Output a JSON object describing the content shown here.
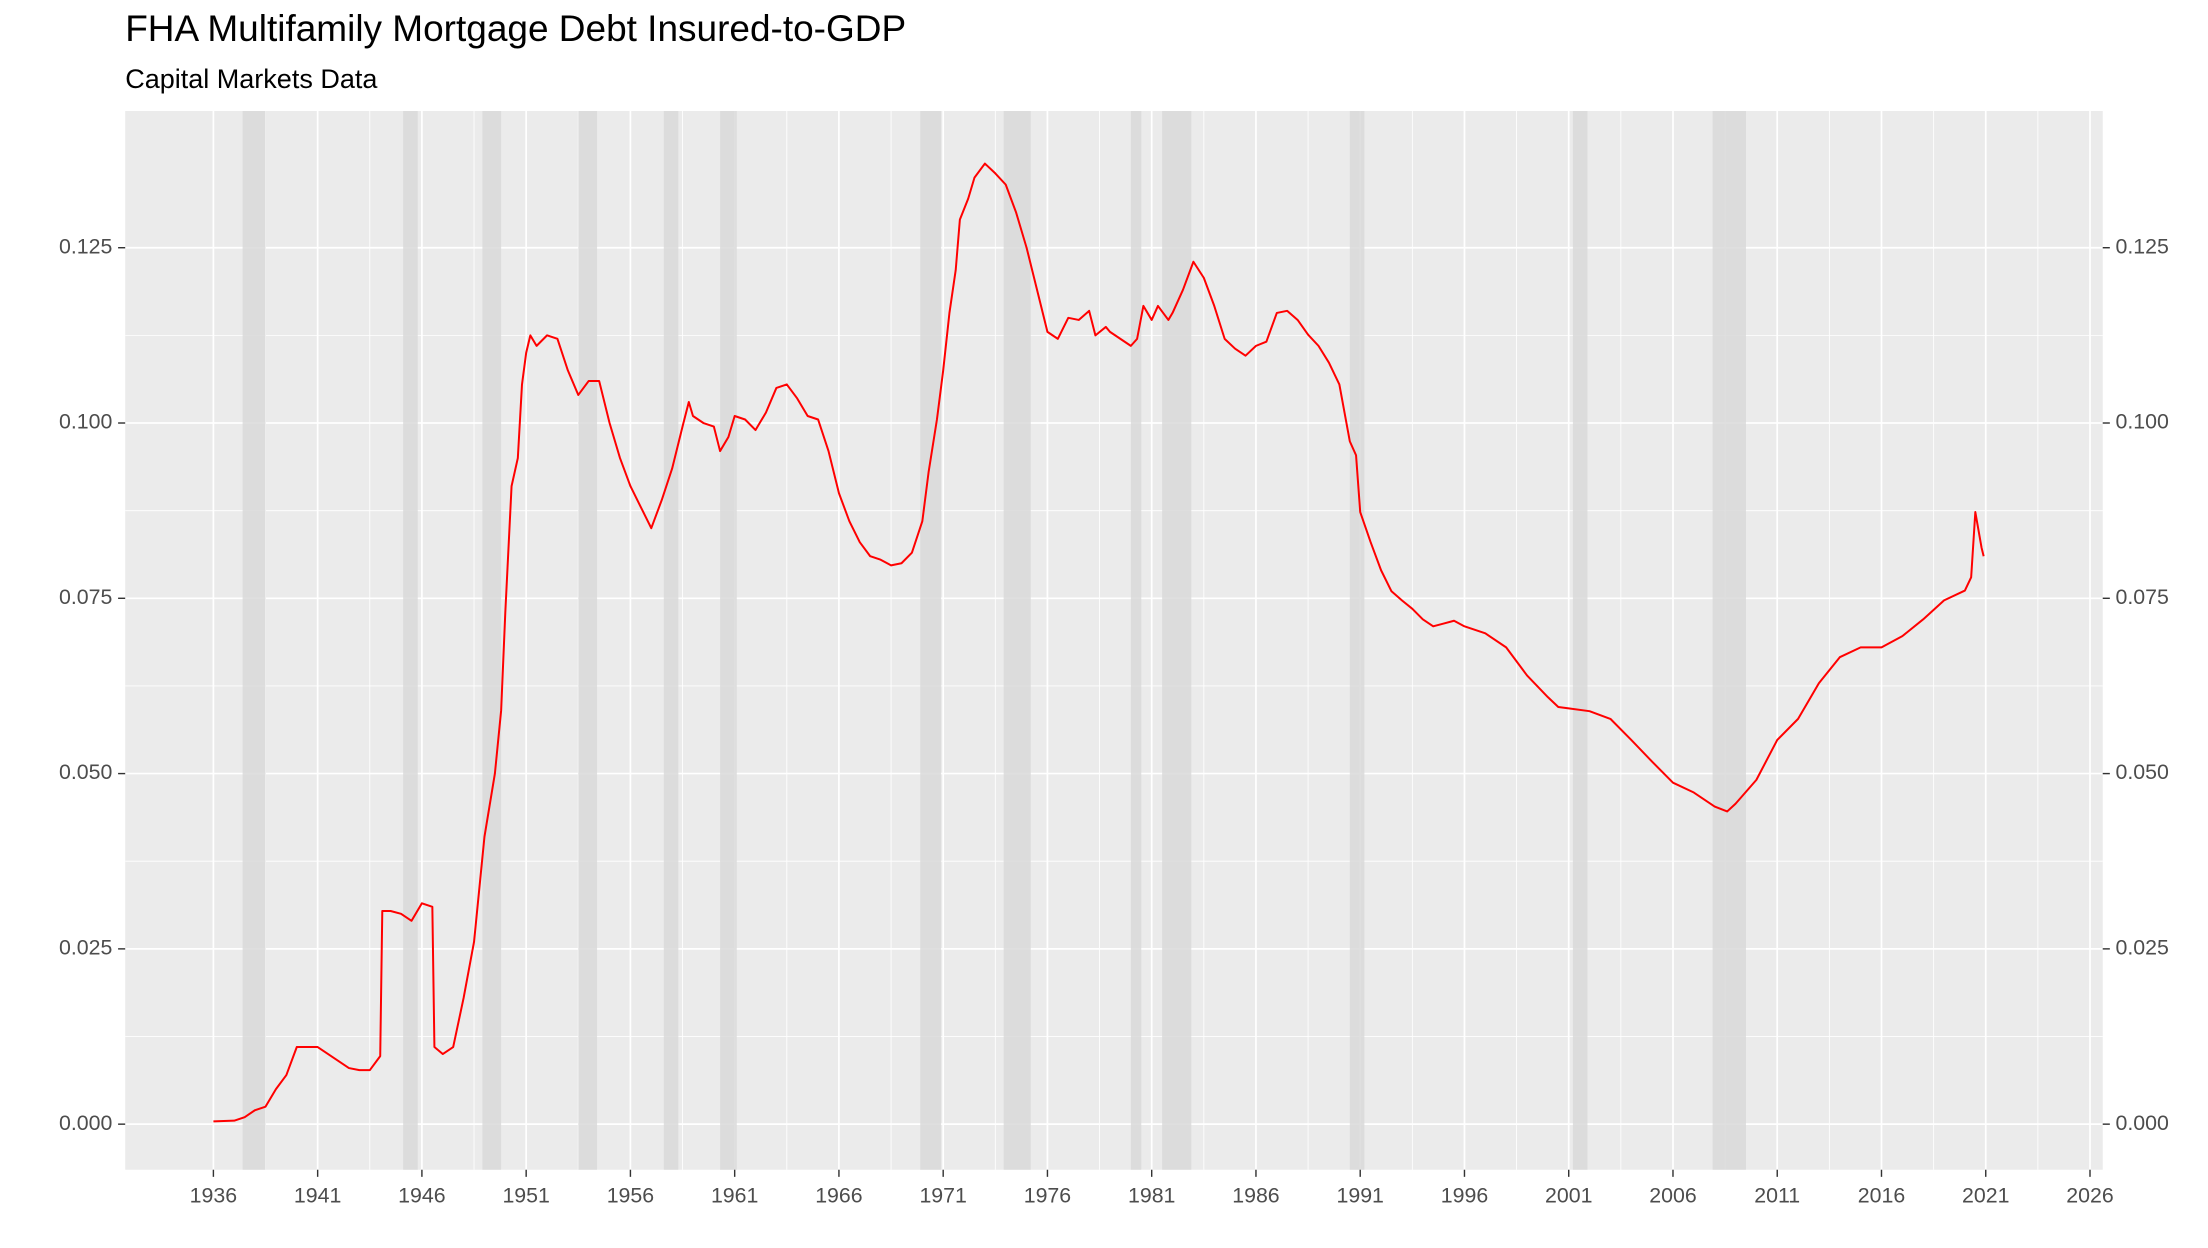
{
  "chart_data": {
    "type": "line",
    "title": "FHA Multifamily Mortgage Debt Insured-to-GDP",
    "subtitle": "Capital Markets Data",
    "color": "#ff0000",
    "recession_color": "#d9d9d9",
    "grid": true,
    "xlim": [
      1931.77,
      2026.61
    ],
    "ylim": [
      -0.0065,
      0.1445
    ],
    "xticks": [
      1936,
      1941,
      1946,
      1951,
      1956,
      1961,
      1966,
      1971,
      1976,
      1981,
      1986,
      1991,
      1996,
      2001,
      2006,
      2011,
      2016,
      2021,
      2026
    ],
    "yticks": [
      {
        "value": 0,
        "label": "0.000"
      },
      0.025,
      {
        "value": 0.05,
        "label": "0.050"
      },
      0.075,
      {
        "value": 0.1,
        "label": "0.100"
      },
      0.125
    ],
    "recessions": [
      [
        1937.4,
        1938.5
      ],
      [
        1945.1,
        1945.8
      ],
      [
        1948.9,
        1949.8
      ],
      [
        1953.5,
        1954.4
      ],
      [
        1957.6,
        1958.3
      ],
      [
        1960.3,
        1961.1
      ],
      [
        1969.9,
        1970.9
      ],
      [
        1973.9,
        1975.2
      ],
      [
        1980.0,
        1980.5
      ],
      [
        1981.5,
        1982.9
      ],
      [
        1990.5,
        1991.2
      ],
      [
        2001.2,
        2001.9
      ],
      [
        2007.9,
        2009.5
      ]
    ],
    "x": [
      1936.0,
      1937.0,
      1937.5,
      1938.0,
      1938.5,
      1939.0,
      1939.5,
      1940.0,
      1940.5,
      1941.0,
      1941.5,
      1942.0,
      1942.5,
      1943.0,
      1943.5,
      1944.0,
      1944.1,
      1944.5,
      1945.0,
      1945.5,
      1946.0,
      1946.5,
      1946.6,
      1947.0,
      1947.5,
      1948.0,
      1948.5,
      1949.0,
      1949.5,
      1949.8,
      1950.0,
      1950.3,
      1950.6,
      1950.8,
      1951.0,
      1951.2,
      1951.5,
      1952.0,
      1952.5,
      1953.0,
      1953.5,
      1954.0,
      1954.5,
      1955.0,
      1955.5,
      1956.0,
      1956.5,
      1957.0,
      1957.5,
      1958.0,
      1958.5,
      1958.8,
      1959.0,
      1959.5,
      1960.0,
      1960.3,
      1960.7,
      1961.0,
      1961.5,
      1962.0,
      1962.5,
      1963.0,
      1963.5,
      1964.0,
      1964.5,
      1965.0,
      1965.5,
      1966.0,
      1966.5,
      1967.0,
      1967.5,
      1968.0,
      1968.5,
      1969.0,
      1969.5,
      1970.0,
      1970.3,
      1970.7,
      1971.0,
      1971.3,
      1971.6,
      1971.8,
      1972.2,
      1972.5,
      1973.0,
      1973.5,
      1974.0,
      1974.5,
      1975.0,
      1975.5,
      1976.0,
      1976.5,
      1977.0,
      1977.5,
      1978.0,
      1978.3,
      1978.8,
      1979.0,
      1979.5,
      1980.0,
      1980.3,
      1980.6,
      1981.0,
      1981.3,
      1981.8,
      1982.0,
      1982.5,
      1983.0,
      1983.5,
      1984.0,
      1984.5,
      1985.0,
      1985.5,
      1986.0,
      1986.5,
      1987.0,
      1987.5,
      1988.0,
      1988.5,
      1989.0,
      1989.5,
      1990.0,
      1990.5,
      1990.8,
      1991.0,
      1991.5,
      1992.0,
      1992.5,
      1993.0,
      1993.5,
      1994.0,
      1994.5,
      1995.0,
      1995.5,
      1996.0,
      1997.0,
      1998.0,
      1999.0,
      2000.0,
      2000.5,
      2001.0,
      2002.0,
      2003.0,
      2004.0,
      2005.0,
      2006.0,
      2007.0,
      2008.0,
      2008.6,
      2009.0,
      2010.0,
      2011.0,
      2012.0,
      2013.0,
      2014.0,
      2015.0,
      2016.0,
      2017.0,
      2018.0,
      2019.0,
      2020.0,
      2020.3,
      2020.5,
      2020.8,
      2020.9
    ],
    "values": [
      0.0004,
      0.0005,
      0.001,
      0.002,
      0.0025,
      0.005,
      0.007,
      0.011,
      0.011,
      0.011,
      0.01,
      0.009,
      0.008,
      0.0077,
      0.0077,
      0.0097,
      0.0304,
      0.0304,
      0.03,
      0.029,
      0.0315,
      0.031,
      0.011,
      0.01,
      0.011,
      0.018,
      0.026,
      0.041,
      0.05,
      0.059,
      0.073,
      0.091,
      0.095,
      0.1055,
      0.11,
      0.1125,
      0.111,
      0.1125,
      0.112,
      0.1075,
      0.104,
      0.106,
      0.106,
      0.1,
      0.095,
      0.091,
      0.088,
      0.085,
      0.089,
      0.0935,
      0.0995,
      0.103,
      0.101,
      0.1,
      0.0995,
      0.096,
      0.098,
      0.101,
      0.1005,
      0.099,
      0.1015,
      0.105,
      0.1055,
      0.1035,
      0.101,
      0.1005,
      0.096,
      0.09,
      0.086,
      0.083,
      0.081,
      0.0805,
      0.0797,
      0.08,
      0.0815,
      0.086,
      0.093,
      0.1005,
      0.1075,
      0.1157,
      0.1218,
      0.129,
      0.132,
      0.135,
      0.137,
      0.1356,
      0.134,
      0.13,
      0.125,
      0.119,
      0.113,
      0.112,
      0.115,
      0.1147,
      0.116,
      0.1125,
      0.1137,
      0.113,
      0.112,
      0.111,
      0.112,
      0.1167,
      0.1147,
      0.1167,
      0.1147,
      0.1157,
      0.119,
      0.123,
      0.1207,
      0.1167,
      0.112,
      0.1106,
      0.1096,
      0.111,
      0.1116,
      0.1157,
      0.116,
      0.1147,
      0.1126,
      0.111,
      0.1086,
      0.1055,
      0.0974,
      0.0954,
      0.0873,
      0.083,
      0.079,
      0.076,
      0.0747,
      0.0735,
      0.072,
      0.071,
      0.0714,
      0.0718,
      0.071,
      0.07,
      0.068,
      0.064,
      0.0609,
      0.0595,
      0.0593,
      0.0589,
      0.0578,
      0.0548,
      0.0517,
      0.0487,
      0.0473,
      0.0453,
      0.0446,
      0.0457,
      0.0491,
      0.0548,
      0.0578,
      0.0629,
      0.0666,
      0.068,
      0.068,
      0.0696,
      0.072,
      0.0747,
      0.0761,
      0.078,
      0.0873,
      0.0822,
      0.081
    ]
  }
}
